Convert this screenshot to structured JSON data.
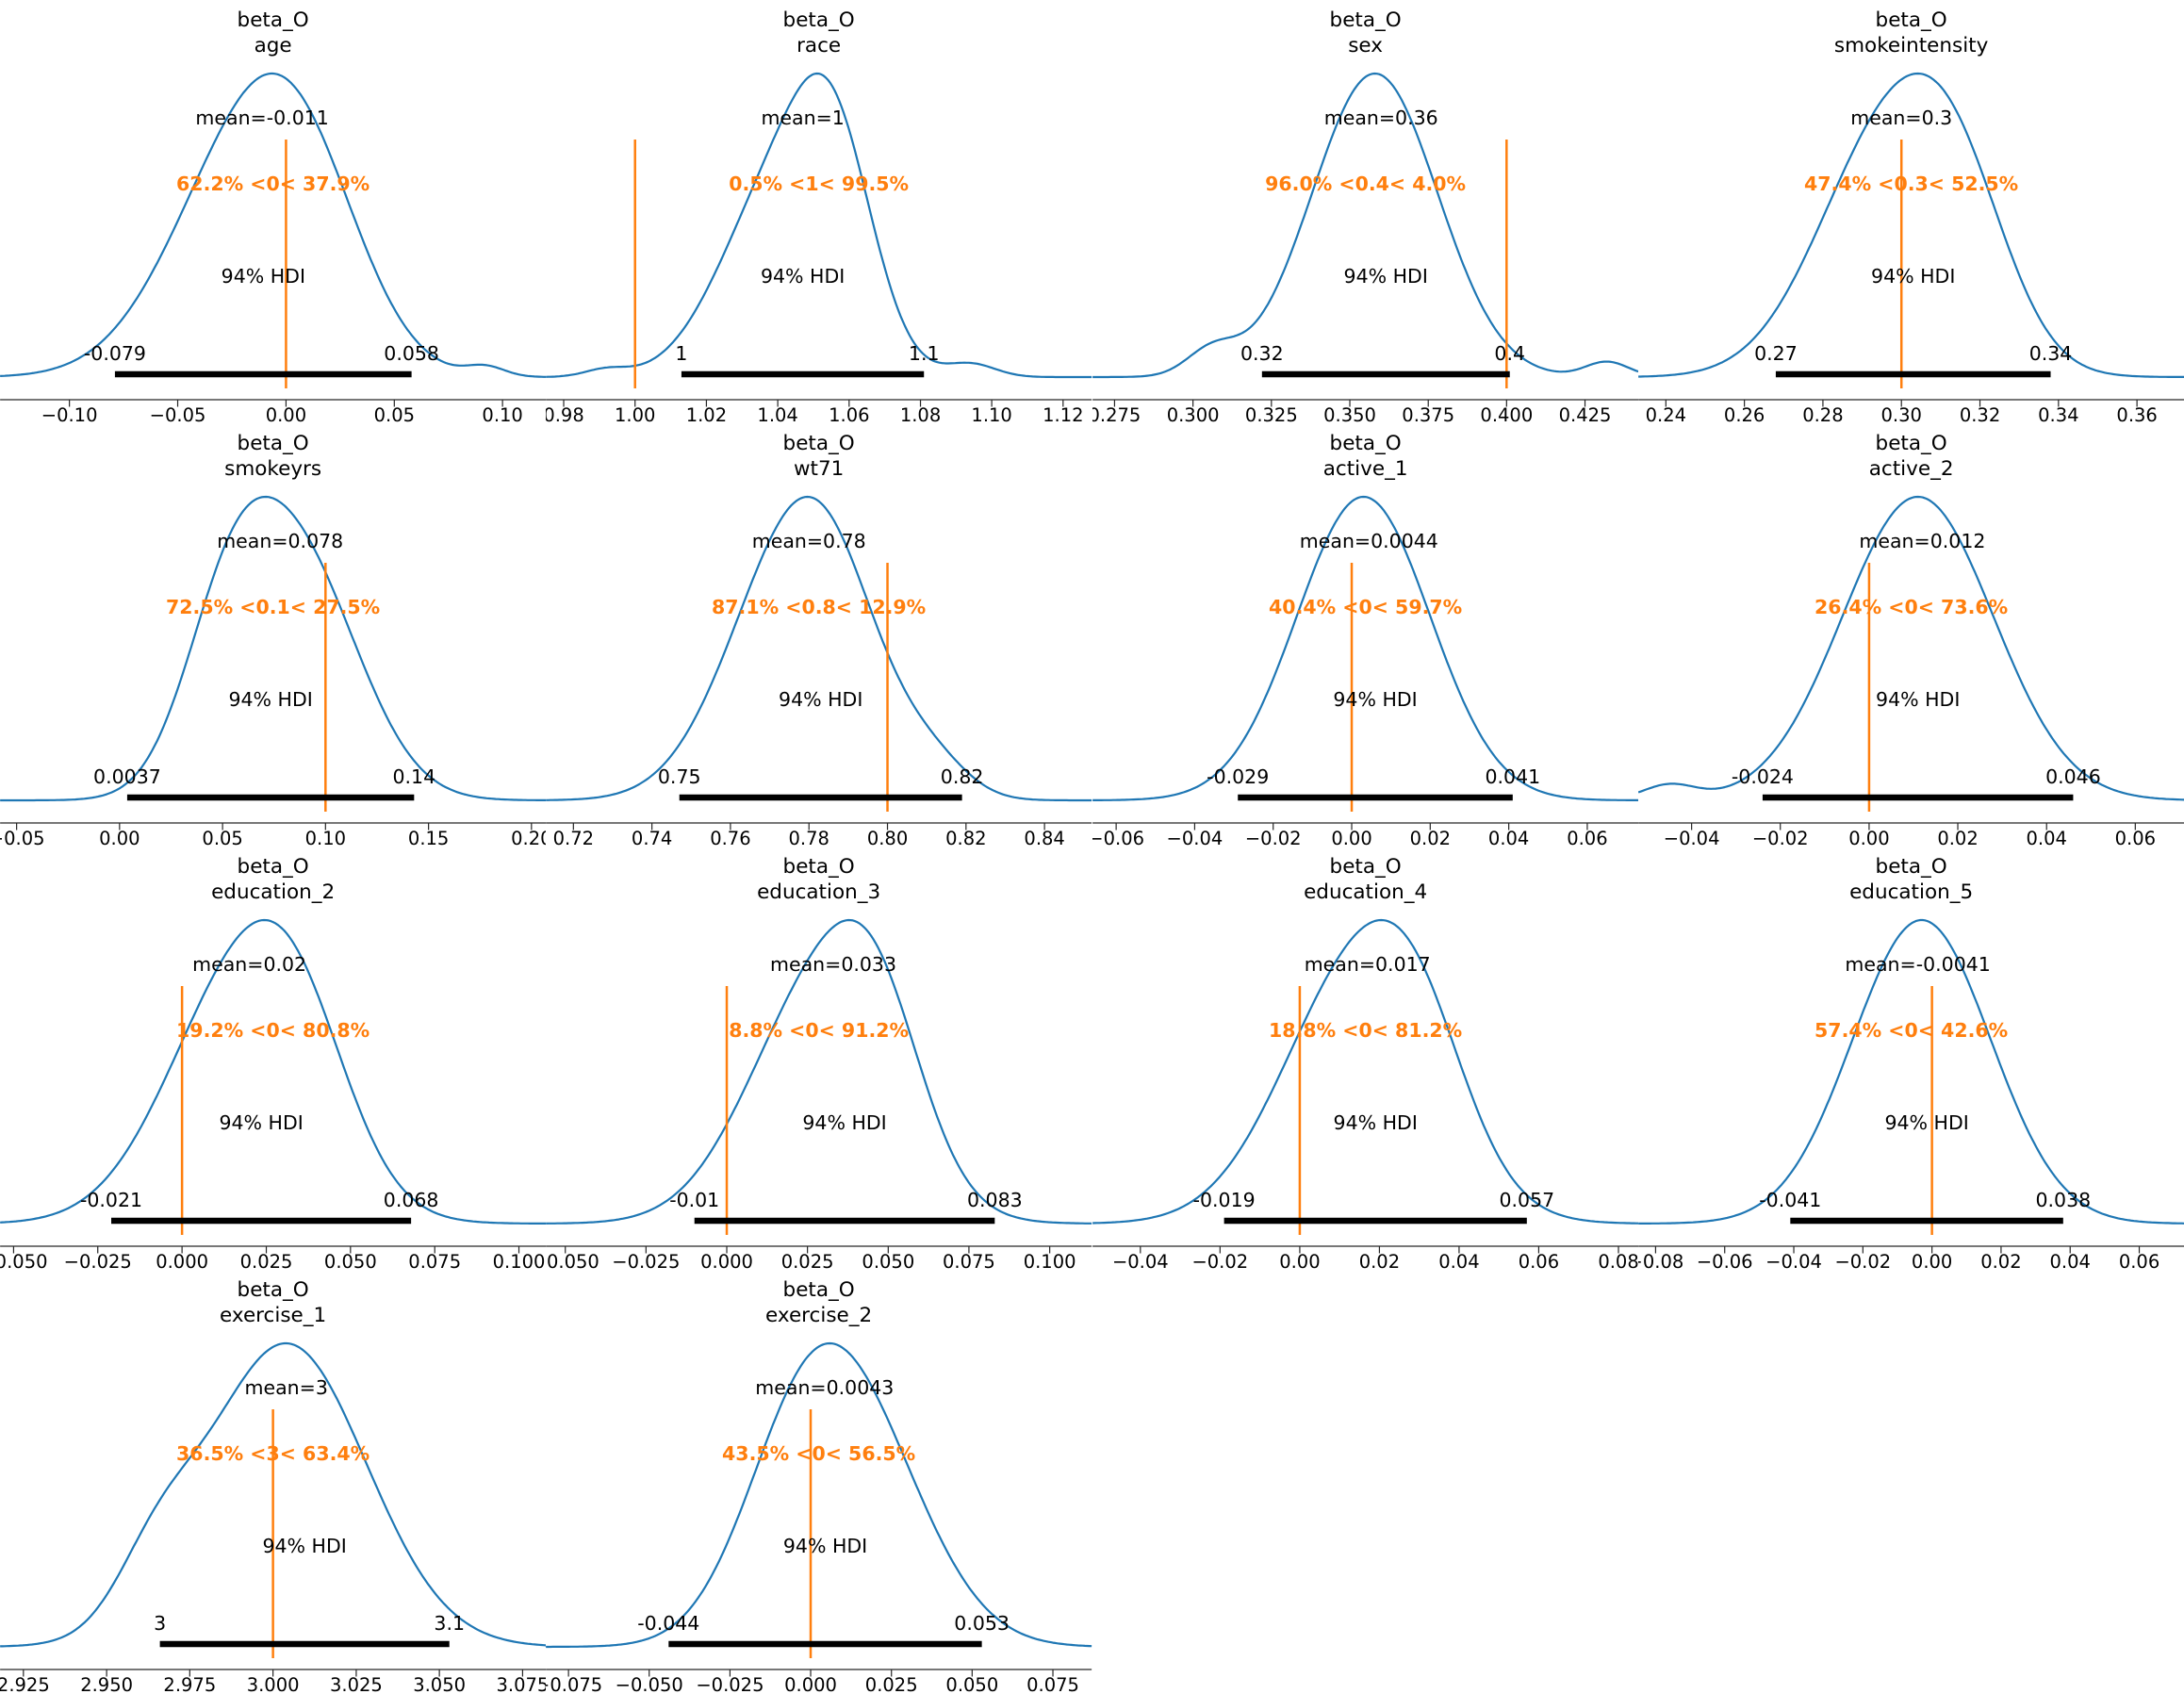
{
  "colors": {
    "curve": "#1f77b4",
    "ref_line": "#ff7f0e",
    "hdi_bar": "#000000",
    "text": "#000000",
    "axis": "#262626"
  },
  "chart_data": {
    "type": "kde",
    "description": "Grid of posterior density (KDE) plots with 94% HDI bars and reference-value probabilities",
    "grid": {
      "rows": 4,
      "cols": 4
    },
    "hdi_probability": "94%",
    "panels": [
      {
        "title_line1": "beta_O",
        "title_line2": "age",
        "mean_label": "mean=-0.011",
        "mean_value": -0.011,
        "prob_label": "62.2% <0< 37.9%",
        "ref_value": 0,
        "hdi_text": "94% HDI",
        "hdi_low_label": "-0.079",
        "hdi_high_label": "0.058",
        "hdi_interval": [
          -0.079,
          0.058
        ],
        "xlim": [
          -0.132,
          0.12
        ],
        "xtick_values": [
          -0.1,
          -0.05,
          0.0,
          0.05,
          0.1
        ],
        "xtick_labels": [
          "−0.10",
          "−0.05",
          "0.00",
          "0.05",
          "0.10"
        ],
        "kde_components": [
          [
            1.0,
            -0.022,
            0.034
          ],
          [
            0.75,
            0.008,
            0.028
          ],
          [
            0.05,
            0.092,
            0.009
          ]
        ]
      },
      {
        "title_line1": "beta_O",
        "title_line2": "race",
        "mean_label": "mean=1",
        "mean_value": 1.047,
        "prob_label": "0.5% <1< 99.5%",
        "ref_value": 1.0,
        "hdi_text": "94% HDI",
        "hdi_low_label": "1",
        "hdi_high_label": "1.1",
        "hdi_interval": [
          1.013,
          1.081
        ],
        "xlim": [
          0.975,
          1.128
        ],
        "xtick_values": [
          0.98,
          1.0,
          1.02,
          1.04,
          1.06,
          1.08,
          1.1,
          1.12
        ],
        "xtick_labels": [
          "0.98",
          "1.00",
          "1.02",
          "1.04",
          "1.06",
          "1.08",
          "1.10",
          "1.12"
        ],
        "kde_components": [
          [
            1.0,
            1.04,
            0.016
          ],
          [
            0.92,
            1.056,
            0.011
          ],
          [
            0.07,
            1.094,
            0.007
          ],
          [
            0.04,
            0.992,
            0.006
          ]
        ]
      },
      {
        "title_line1": "beta_O",
        "title_line2": "sex",
        "mean_label": "mean=0.36",
        "mean_value": 0.36,
        "prob_label": "96.0% <0.4< 4.0%",
        "ref_value": 0.4,
        "hdi_text": "94% HDI",
        "hdi_low_label": "0.32",
        "hdi_high_label": "0.4",
        "hdi_interval": [
          0.322,
          0.401
        ],
        "xlim": [
          0.268,
          0.442
        ],
        "xtick_values": [
          0.275,
          0.3,
          0.325,
          0.35,
          0.375,
          0.4,
          0.425
        ],
        "xtick_labels": [
          "0.275",
          "0.300",
          "0.325",
          "0.350",
          "0.375",
          "0.400",
          "0.425"
        ],
        "kde_components": [
          [
            1.0,
            0.358,
            0.02
          ],
          [
            0.08,
            0.306,
            0.008
          ],
          [
            0.05,
            0.432,
            0.007
          ]
        ]
      },
      {
        "title_line1": "beta_O",
        "title_line2": "smokeintensity",
        "mean_label": "mean=0.3",
        "mean_value": 0.3,
        "prob_label": "47.4% <0.3< 52.5%",
        "ref_value": 0.3,
        "hdi_text": "94% HDI",
        "hdi_low_label": "0.27",
        "hdi_high_label": "0.34",
        "hdi_interval": [
          0.268,
          0.338
        ],
        "xlim": [
          0.233,
          0.372
        ],
        "xtick_values": [
          0.24,
          0.26,
          0.28,
          0.3,
          0.32,
          0.34,
          0.36
        ],
        "xtick_labels": [
          "0.24",
          "0.26",
          "0.28",
          "0.30",
          "0.32",
          "0.34",
          "0.36"
        ],
        "kde_components": [
          [
            1.0,
            0.297,
            0.018
          ],
          [
            0.45,
            0.315,
            0.013
          ]
        ]
      },
      {
        "title_line1": "beta_O",
        "title_line2": "smokeyrs",
        "mean_label": "mean=0.078",
        "mean_value": 0.078,
        "prob_label": "72.5% <0.1< 27.5%",
        "ref_value": 0.1,
        "hdi_text": "94% HDI",
        "hdi_low_label": "0.0037",
        "hdi_high_label": "0.14",
        "hdi_interval": [
          0.0037,
          0.143
        ],
        "xlim": [
          -0.058,
          0.207
        ],
        "xtick_values": [
          -0.05,
          0.0,
          0.05,
          0.1,
          0.15,
          0.2
        ],
        "xtick_labels": [
          "−0.05",
          "0.00",
          "0.05",
          "0.10",
          "0.15",
          "0.20"
        ],
        "kde_components": [
          [
            1.0,
            0.086,
            0.03
          ],
          [
            0.55,
            0.052,
            0.022
          ]
        ]
      },
      {
        "title_line1": "beta_O",
        "title_line2": "wt71",
        "mean_label": "mean=0.78",
        "mean_value": 0.78,
        "prob_label": "87.1% <0.8< 12.9%",
        "ref_value": 0.8,
        "hdi_text": "94% HDI",
        "hdi_low_label": "0.75",
        "hdi_high_label": "0.82",
        "hdi_interval": [
          0.747,
          0.819
        ],
        "xlim": [
          0.713,
          0.852
        ],
        "xtick_values": [
          0.72,
          0.74,
          0.76,
          0.78,
          0.8,
          0.82,
          0.84
        ],
        "xtick_labels": [
          "0.72",
          "0.74",
          "0.76",
          "0.78",
          "0.80",
          "0.82",
          "0.84"
        ],
        "kde_components": [
          [
            1.0,
            0.772,
            0.016
          ],
          [
            0.9,
            0.786,
            0.014
          ],
          [
            0.16,
            0.812,
            0.009
          ]
        ]
      },
      {
        "title_line1": "beta_O",
        "title_line2": "active_1",
        "mean_label": "mean=0.0044",
        "mean_value": 0.0044,
        "prob_label": "40.4% <0< 59.7%",
        "ref_value": 0,
        "hdi_text": "94% HDI",
        "hdi_low_label": "-0.029",
        "hdi_high_label": "0.041",
        "hdi_interval": [
          -0.029,
          0.041
        ],
        "xlim": [
          -0.066,
          0.073
        ],
        "xtick_values": [
          -0.06,
          -0.04,
          -0.02,
          0.0,
          0.02,
          0.04,
          0.06
        ],
        "xtick_labels": [
          "−0.06",
          "−0.04",
          "−0.02",
          "0.00",
          "0.02",
          "0.04",
          "0.06"
        ],
        "kde_components": [
          [
            1.0,
            0.003,
            0.017
          ]
        ]
      },
      {
        "title_line1": "beta_O",
        "title_line2": "active_2",
        "mean_label": "mean=0.012",
        "mean_value": 0.012,
        "prob_label": "26.4% <0< 73.6%",
        "ref_value": 0,
        "hdi_text": "94% HDI",
        "hdi_low_label": "-0.024",
        "hdi_high_label": "0.046",
        "hdi_interval": [
          -0.024,
          0.046
        ],
        "xlim": [
          -0.052,
          0.071
        ],
        "xtick_values": [
          -0.04,
          -0.02,
          0.0,
          0.02,
          0.04,
          0.06
        ],
        "xtick_labels": [
          "−0.04",
          "−0.02",
          "0.00",
          "0.02",
          "0.04",
          "0.06"
        ],
        "kde_components": [
          [
            1.0,
            0.011,
            0.017
          ],
          [
            0.05,
            -0.045,
            0.006
          ]
        ]
      },
      {
        "title_line1": "beta_O",
        "title_line2": "education_2",
        "mean_label": "mean=0.02",
        "mean_value": 0.02,
        "prob_label": "19.2% <0< 80.8%",
        "ref_value": 0,
        "hdi_text": "94% HDI",
        "hdi_low_label": "-0.021",
        "hdi_high_label": "0.068",
        "hdi_interval": [
          -0.021,
          0.068
        ],
        "xlim": [
          -0.054,
          0.108
        ],
        "xtick_values": [
          -0.05,
          -0.025,
          0.0,
          0.025,
          0.05,
          0.075,
          0.1
        ],
        "xtick_labels": [
          "−0.050",
          "−0.025",
          "0.000",
          "0.025",
          "0.050",
          "0.075",
          "0.100"
        ],
        "kde_components": [
          [
            1.0,
            0.018,
            0.022
          ],
          [
            0.35,
            0.035,
            0.015
          ]
        ]
      },
      {
        "title_line1": "beta_O",
        "title_line2": "education_3",
        "mean_label": "mean=0.033",
        "mean_value": 0.033,
        "prob_label": "8.8% <0< 91.2%",
        "ref_value": 0,
        "hdi_text": "94% HDI",
        "hdi_low_label": "-0.01",
        "hdi_high_label": "0.083",
        "hdi_interval": [
          -0.01,
          0.083
        ],
        "xlim": [
          -0.056,
          0.113
        ],
        "xtick_values": [
          -0.05,
          -0.025,
          0.0,
          0.025,
          0.05,
          0.075,
          0.1
        ],
        "xtick_labels": [
          "−0.050",
          "−0.025",
          "0.000",
          "0.025",
          "0.050",
          "0.075",
          "0.100"
        ],
        "kde_components": [
          [
            1.0,
            0.029,
            0.022
          ],
          [
            0.45,
            0.047,
            0.014
          ]
        ]
      },
      {
        "title_line1": "beta_O",
        "title_line2": "education_4",
        "mean_label": "mean=0.017",
        "mean_value": 0.017,
        "prob_label": "18.8% <0< 81.2%",
        "ref_value": 0,
        "hdi_text": "94% HDI",
        "hdi_low_label": "-0.019",
        "hdi_high_label": "0.057",
        "hdi_interval": [
          -0.019,
          0.057
        ],
        "xlim": [
          -0.052,
          0.085
        ],
        "xtick_values": [
          -0.04,
          -0.02,
          0.0,
          0.02,
          0.04,
          0.06,
          0.08
        ],
        "xtick_labels": [
          "−0.04",
          "−0.02",
          "0.00",
          "0.02",
          "0.04",
          "0.06",
          "0.08"
        ],
        "kde_components": [
          [
            1.0,
            0.015,
            0.019
          ],
          [
            0.3,
            0.03,
            0.012
          ]
        ]
      },
      {
        "title_line1": "beta_O",
        "title_line2": "education_5",
        "mean_label": "mean=-0.0041",
        "mean_value": -0.0041,
        "prob_label": "57.4% <0< 42.6%",
        "ref_value": 0,
        "hdi_text": "94% HDI",
        "hdi_low_label": "-0.041",
        "hdi_high_label": "0.038",
        "hdi_interval": [
          -0.041,
          0.038
        ],
        "xlim": [
          -0.085,
          0.073
        ],
        "xtick_values": [
          -0.08,
          -0.06,
          -0.04,
          -0.02,
          0.0,
          0.02,
          0.04,
          0.06
        ],
        "xtick_labels": [
          "−0.08",
          "−0.06",
          "−0.04",
          "−0.02",
          "0.00",
          "0.02",
          "0.04",
          "0.06"
        ],
        "kde_components": [
          [
            1.0,
            -0.003,
            0.02
          ]
        ]
      },
      {
        "title_line1": "beta_O",
        "title_line2": "exercise_1",
        "mean_label": "mean=3",
        "mean_value": 3.004,
        "prob_label": "36.5% <3< 63.4%",
        "ref_value": 3,
        "hdi_text": "94% HDI",
        "hdi_low_label": "3",
        "hdi_high_label": "3.1",
        "hdi_interval": [
          2.966,
          3.053
        ],
        "xlim": [
          2.918,
          3.082
        ],
        "xtick_values": [
          2.925,
          2.95,
          2.975,
          3.0,
          3.025,
          3.05,
          3.075
        ],
        "xtick_labels": [
          "2.925",
          "2.950",
          "2.975",
          "3.000",
          "3.025",
          "3.050",
          "3.075"
        ],
        "kde_components": [
          [
            1.0,
            3.004,
            0.024
          ],
          [
            0.2,
            2.965,
            0.012
          ]
        ]
      },
      {
        "title_line1": "beta_O",
        "title_line2": "exercise_2",
        "mean_label": "mean=0.0043",
        "mean_value": 0.0043,
        "prob_label": "43.5% <0< 56.5%",
        "ref_value": 0,
        "hdi_text": "94% HDI",
        "hdi_low_label": "-0.044",
        "hdi_high_label": "0.053",
        "hdi_interval": [
          -0.044,
          0.053
        ],
        "xlim": [
          -0.082,
          0.087
        ],
        "xtick_values": [
          -0.075,
          -0.05,
          -0.025,
          0.0,
          0.025,
          0.05,
          0.075
        ],
        "xtick_labels": [
          "−0.075",
          "−0.050",
          "−0.025",
          "0.000",
          "0.025",
          "0.050",
          "0.075"
        ],
        "kde_components": [
          [
            1.0,
            0.013,
            0.022
          ],
          [
            0.5,
            -0.005,
            0.018
          ]
        ]
      }
    ]
  }
}
